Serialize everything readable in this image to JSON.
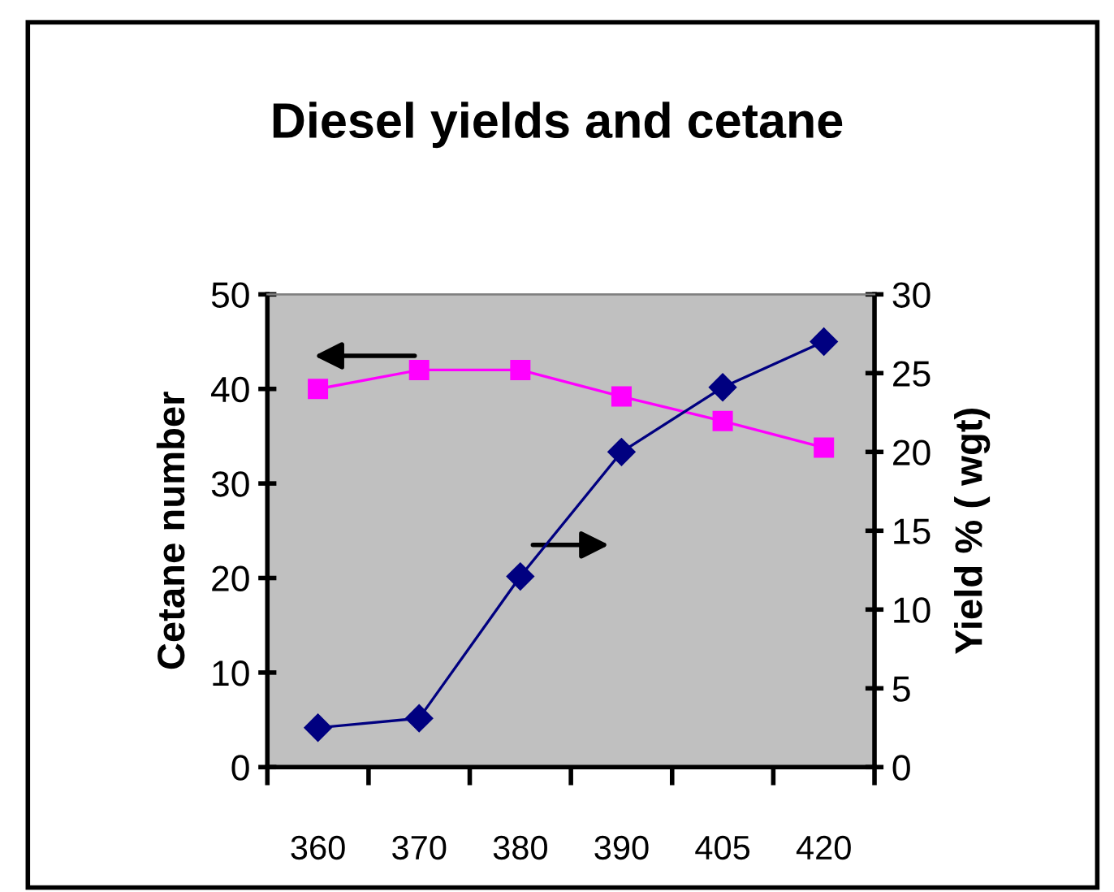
{
  "chart_data": {
    "type": "line",
    "title": "Diesel yields and cetane",
    "ylabel": "Cetane number",
    "y2label": "Yield % ( wgt)",
    "categories": [
      "360",
      "370",
      "380",
      "390",
      "405",
      "420"
    ],
    "series": [
      {
        "color": "#ff00ff",
        "marker": "square",
        "values": [
          40,
          42,
          42,
          39.2,
          36.6,
          33.8
        ]
      },
      {
        "color": "#000080",
        "marker": "diamond",
        "axis": "y2",
        "values": [
          2.5,
          3.1,
          12.1,
          20,
          24.1,
          27
        ]
      }
    ],
    "ylim": [
      0,
      50
    ],
    "yticks": [
      0,
      10,
      20,
      30,
      40,
      50
    ],
    "y2lim": [
      0,
      30
    ],
    "y2ticks": [
      0,
      5,
      10,
      15,
      20,
      25,
      30
    ],
    "grid": false,
    "legend": false,
    "line_style": "solid"
  }
}
